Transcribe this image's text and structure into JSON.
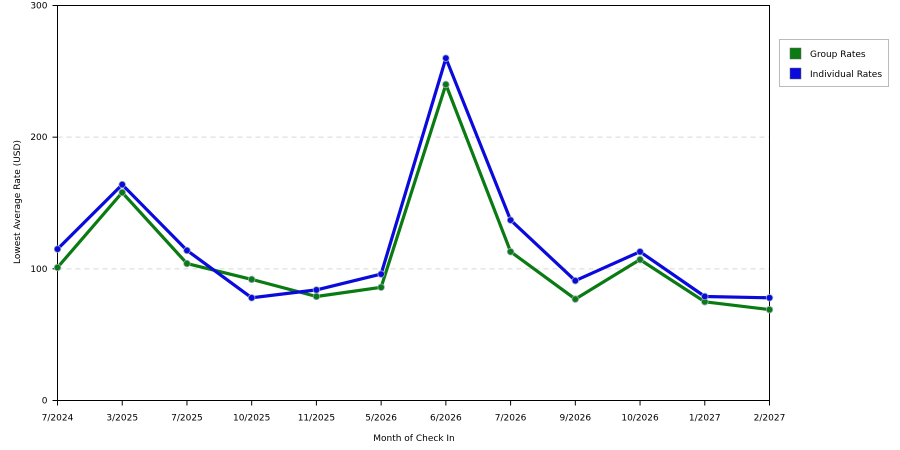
{
  "chart_data": {
    "type": "line",
    "title": "",
    "xlabel": "Month of Check In",
    "ylabel": "Lowest Average Rate (USD)",
    "categories": [
      "7/2024",
      "3/2025",
      "7/2025",
      "10/2025",
      "11/2025",
      "5/2026",
      "6/2026",
      "7/2026",
      "9/2026",
      "10/2026",
      "1/2027",
      "2/2027"
    ],
    "ylim": [
      0,
      300
    ],
    "yticks": [
      0,
      100,
      200,
      300
    ],
    "grid": true,
    "legend_position": "right",
    "series": [
      {
        "name": "Group Rates",
        "color": "#0a7a12",
        "values": [
          101,
          158,
          104,
          92,
          79,
          86,
          240,
          113,
          77,
          107,
          75,
          69
        ]
      },
      {
        "name": "Individual Rates",
        "color": "#0a0adc",
        "values": [
          115,
          164,
          114,
          78,
          84,
          96,
          260,
          137,
          91,
          113,
          79,
          78
        ]
      }
    ]
  }
}
